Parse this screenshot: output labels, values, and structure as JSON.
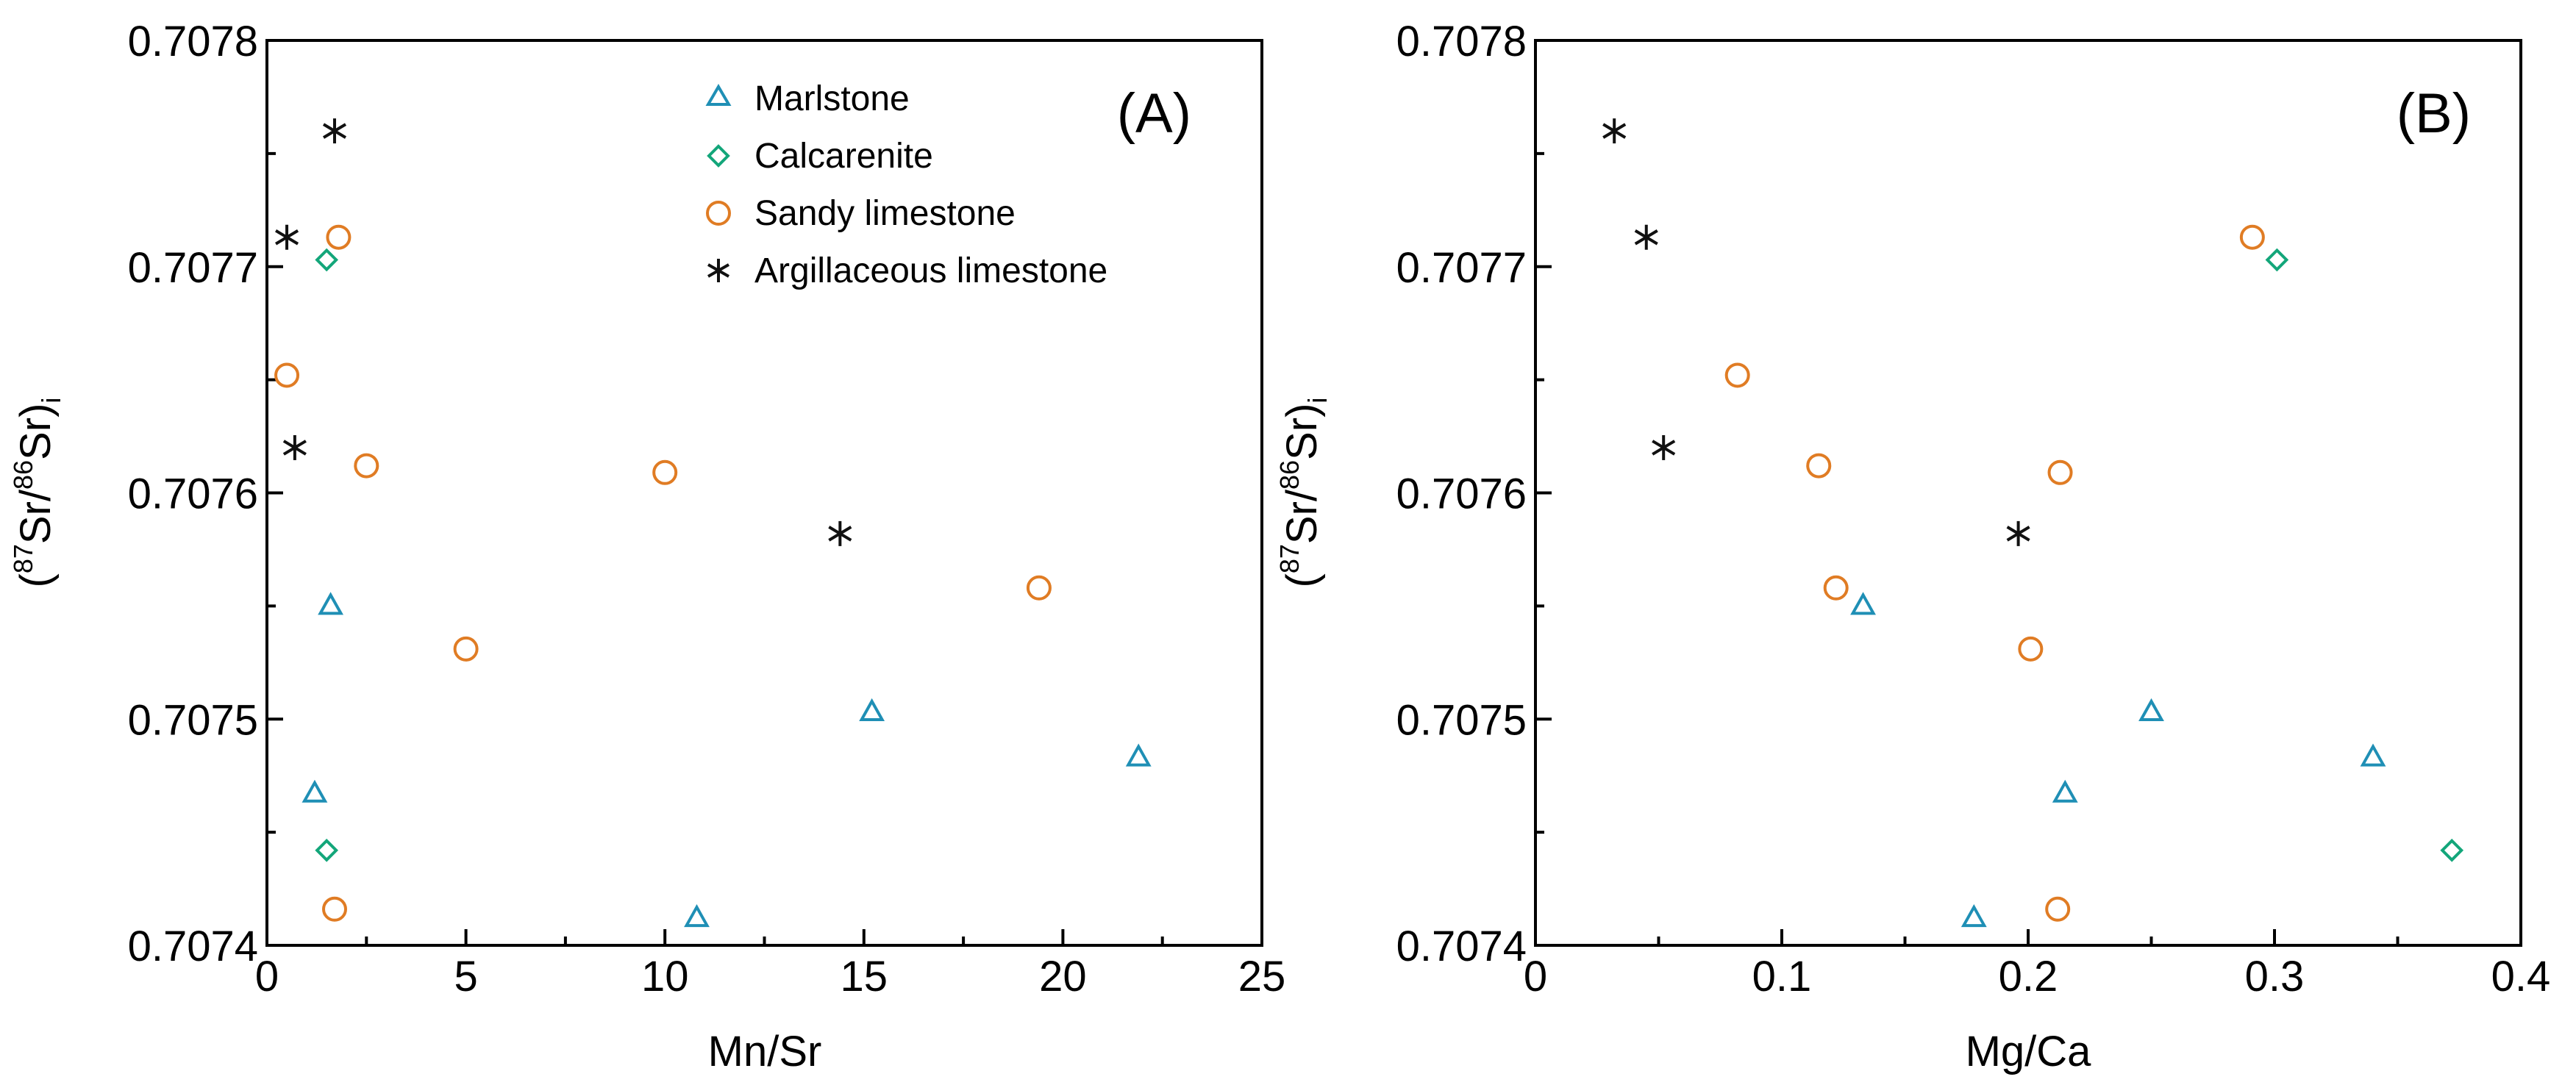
{
  "chart_data": [
    {
      "type": "scatter",
      "panel_label": "(A)",
      "xlabel": "Mn/Sr",
      "ylabel": {
        "open": "(",
        "sup1": "87",
        "mid": "Sr/",
        "sup2": "86",
        "close": "Sr)",
        "sub": "i"
      },
      "xlim": [
        0,
        25
      ],
      "ylim": [
        0.7074,
        0.7078
      ],
      "x_ticks": [
        0,
        5,
        10,
        15,
        20,
        25
      ],
      "x_tick_labels": [
        "0",
        "5",
        "10",
        "15",
        "20",
        "25"
      ],
      "y_ticks": [
        0.7074,
        0.7075,
        0.7076,
        0.7077,
        0.7078
      ],
      "y_tick_labels": [
        "0.7074",
        "0.7075",
        "0.7076",
        "0.7077",
        "0.7078"
      ],
      "grid": false,
      "legend_position": "top-right",
      "series": [
        {
          "name": "Marlstone",
          "marker": "triangle",
          "color": "#1f8fb5",
          "points": [
            [
              1.6,
              0.70755
            ],
            [
              1.2,
              0.707467
            ],
            [
              15.2,
              0.707503
            ],
            [
              10.8,
              0.707412
            ],
            [
              21.9,
              0.707483
            ]
          ]
        },
        {
          "name": "Calcarenite",
          "marker": "diamond",
          "color": "#13a67a",
          "points": [
            [
              1.5,
              0.707703
            ],
            [
              1.5,
              0.707442
            ]
          ]
        },
        {
          "name": "Sandy limestone",
          "marker": "circle",
          "color": "#e07c24",
          "points": [
            [
              1.8,
              0.707713
            ],
            [
              0.5,
              0.707652
            ],
            [
              2.5,
              0.707612
            ],
            [
              10.0,
              0.707609
            ],
            [
              5.0,
              0.707531
            ],
            [
              19.4,
              0.707558
            ],
            [
              1.7,
              0.707416
            ]
          ]
        },
        {
          "name": "Argillaceous limestone",
          "marker": "asterisk",
          "color": "#111111",
          "points": [
            [
              1.7,
              0.70776
            ],
            [
              0.5,
              0.707713
            ],
            [
              0.7,
              0.70762
            ],
            [
              14.4,
              0.707582
            ]
          ]
        }
      ]
    },
    {
      "type": "scatter",
      "panel_label": "(B)",
      "xlabel": "Mg/Ca",
      "ylabel": {
        "open": "(",
        "sup1": "87",
        "mid": "Sr/",
        "sup2": "86",
        "close": "Sr)",
        "sub": "i"
      },
      "xlim": [
        0,
        0.4
      ],
      "ylim": [
        0.7074,
        0.7078
      ],
      "x_ticks": [
        0,
        0.1,
        0.2,
        0.3,
        0.4
      ],
      "x_tick_labels": [
        "0",
        "0.1",
        "0.2",
        "0.3",
        "0.4"
      ],
      "y_ticks": [
        0.7074,
        0.7075,
        0.7076,
        0.7077,
        0.7078
      ],
      "y_tick_labels": [
        "0.7074",
        "0.7075",
        "0.7076",
        "0.7077",
        "0.7078"
      ],
      "grid": false,
      "legend_position": "none",
      "series": [
        {
          "name": "Marlstone",
          "marker": "triangle",
          "color": "#1f8fb5",
          "points": [
            [
              0.133,
              0.70755
            ],
            [
              0.215,
              0.707467
            ],
            [
              0.25,
              0.707503
            ],
            [
              0.178,
              0.707412
            ],
            [
              0.34,
              0.707483
            ]
          ]
        },
        {
          "name": "Calcarenite",
          "marker": "diamond",
          "color": "#13a67a",
          "points": [
            [
              0.301,
              0.707703
            ],
            [
              0.372,
              0.707442
            ]
          ]
        },
        {
          "name": "Sandy limestone",
          "marker": "circle",
          "color": "#e07c24",
          "points": [
            [
              0.291,
              0.707713
            ],
            [
              0.082,
              0.707652
            ],
            [
              0.115,
              0.707612
            ],
            [
              0.213,
              0.707609
            ],
            [
              0.201,
              0.707531
            ],
            [
              0.122,
              0.707558
            ],
            [
              0.212,
              0.707416
            ]
          ]
        },
        {
          "name": "Argillaceous limestone",
          "marker": "asterisk",
          "color": "#111111",
          "points": [
            [
              0.032,
              0.70776
            ],
            [
              0.045,
              0.707713
            ],
            [
              0.052,
              0.70762
            ],
            [
              0.196,
              0.707582
            ]
          ]
        }
      ]
    }
  ]
}
